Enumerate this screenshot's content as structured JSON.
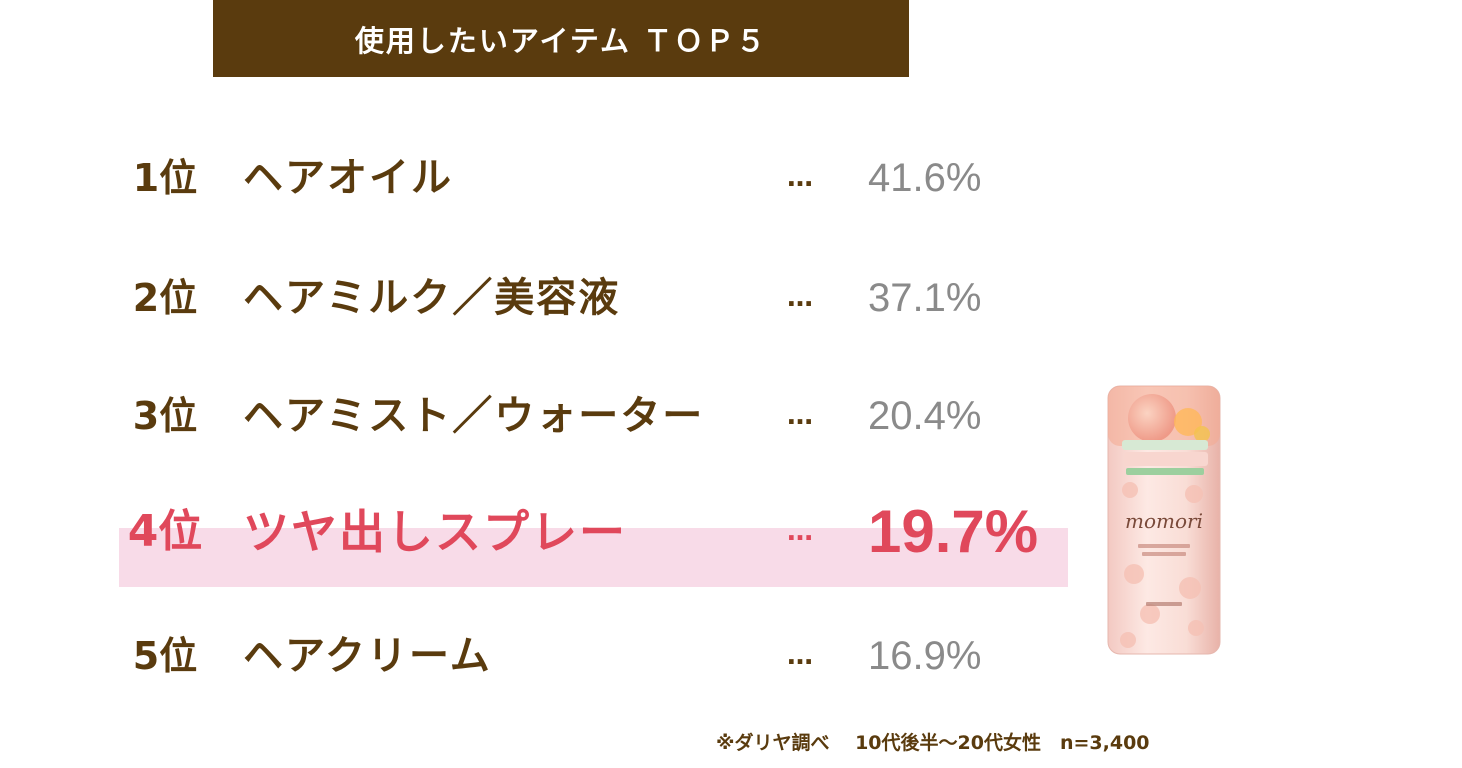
{
  "header": {
    "title": "使用したいアイテム ＴＯＰ５"
  },
  "chart_data": {
    "type": "table",
    "title": "使用したいアイテム ＴＯＰ５",
    "rows": [
      {
        "rank": "1位",
        "item": "ヘアオイル",
        "separator": "…",
        "value": 41.6,
        "value_label": "41.6%"
      },
      {
        "rank": "2位",
        "item": "ヘアミルク／美容液",
        "separator": "…",
        "value": 37.1,
        "value_label": "37.1%"
      },
      {
        "rank": "3位",
        "item": "ヘアミスト／ウォーター",
        "separator": "…",
        "value": 20.4,
        "value_label": "20.4%"
      },
      {
        "rank": "4位",
        "item": "ツヤ出しスプレー",
        "separator": "…",
        "value": 19.7,
        "value_label": "19.7%",
        "highlighted": true
      },
      {
        "rank": "5位",
        "item": "ヘアクリーム",
        "separator": "…",
        "value": 16.9,
        "value_label": "16.9%"
      }
    ],
    "colors": {
      "primary": "#5a3b0e",
      "highlight_text": "#e0485b",
      "highlight_band": "#f8dbe8",
      "value_gray": "#8a8a8a"
    }
  },
  "footnote": "※ダリヤ調べ　 10代後半〜20代女性　n=3,400",
  "product": {
    "brand": "momori",
    "label_catch": "さらっとツヤめく髪に",
    "label_sub": "ふんわりまとまる ヘアスプレー",
    "maker": "DARIYA"
  }
}
